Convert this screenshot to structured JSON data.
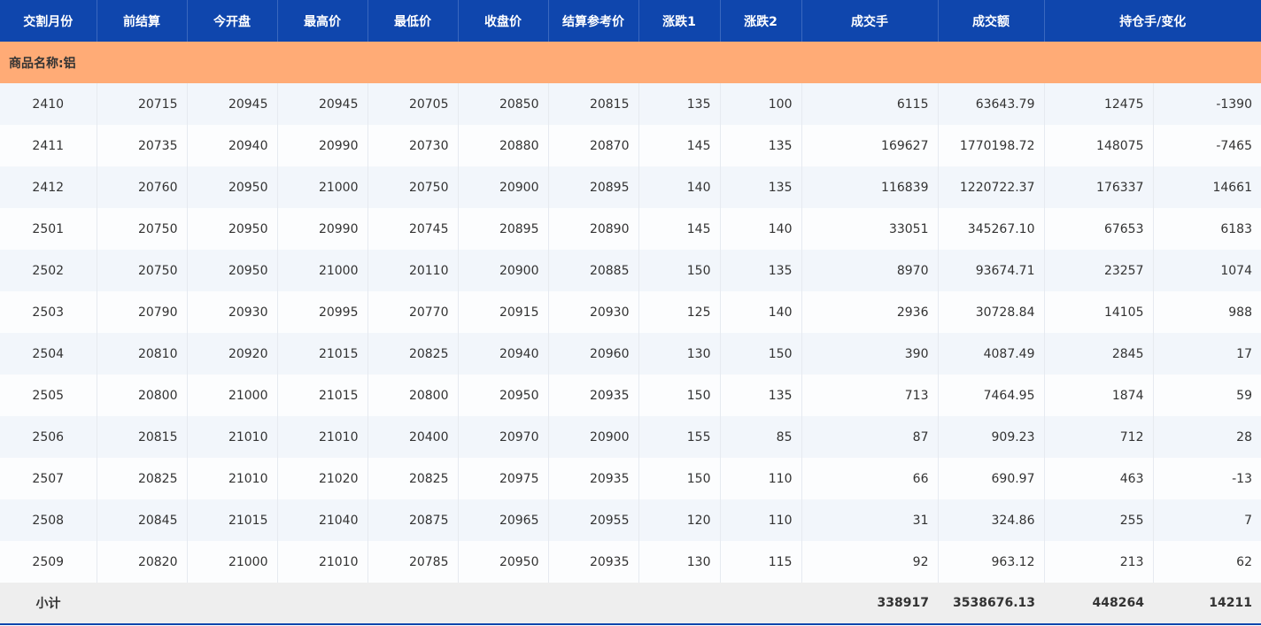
{
  "table": {
    "header": [
      "交割月份",
      "前结算",
      "今开盘",
      "最高价",
      "最低价",
      "收盘价",
      "结算参考价",
      "涨跌1",
      "涨跌2",
      "成交手",
      "成交额",
      "持仓手/变化"
    ],
    "group_label": "商品名称:铝",
    "rows": [
      [
        "2410",
        "20715",
        "20945",
        "20945",
        "20705",
        "20850",
        "20815",
        "135",
        "100",
        "6115",
        "63643.79",
        "12475",
        "-1390"
      ],
      [
        "2411",
        "20735",
        "20940",
        "20990",
        "20730",
        "20880",
        "20870",
        "145",
        "135",
        "169627",
        "1770198.72",
        "148075",
        "-7465"
      ],
      [
        "2412",
        "20760",
        "20950",
        "21000",
        "20750",
        "20900",
        "20895",
        "140",
        "135",
        "116839",
        "1220722.37",
        "176337",
        "14661"
      ],
      [
        "2501",
        "20750",
        "20950",
        "20990",
        "20745",
        "20895",
        "20890",
        "145",
        "140",
        "33051",
        "345267.10",
        "67653",
        "6183"
      ],
      [
        "2502",
        "20750",
        "20950",
        "21000",
        "20110",
        "20900",
        "20885",
        "150",
        "135",
        "8970",
        "93674.71",
        "23257",
        "1074"
      ],
      [
        "2503",
        "20790",
        "20930",
        "20995",
        "20770",
        "20915",
        "20930",
        "125",
        "140",
        "2936",
        "30728.84",
        "14105",
        "988"
      ],
      [
        "2504",
        "20810",
        "20920",
        "21015",
        "20825",
        "20940",
        "20960",
        "130",
        "150",
        "390",
        "4087.49",
        "2845",
        "17"
      ],
      [
        "2505",
        "20800",
        "21000",
        "21015",
        "20800",
        "20950",
        "20935",
        "150",
        "135",
        "713",
        "7464.95",
        "1874",
        "59"
      ],
      [
        "2506",
        "20815",
        "21010",
        "21010",
        "20400",
        "20970",
        "20900",
        "155",
        "85",
        "87",
        "909.23",
        "712",
        "28"
      ],
      [
        "2507",
        "20825",
        "21010",
        "21020",
        "20825",
        "20975",
        "20935",
        "150",
        "110",
        "66",
        "690.97",
        "463",
        "-13"
      ],
      [
        "2508",
        "20845",
        "21015",
        "21040",
        "20875",
        "20965",
        "20955",
        "120",
        "110",
        "31",
        "324.86",
        "255",
        "7"
      ],
      [
        "2509",
        "20820",
        "21000",
        "21010",
        "20785",
        "20950",
        "20935",
        "130",
        "115",
        "92",
        "963.12",
        "213",
        "62"
      ]
    ],
    "subtotal": [
      "小计",
      "338917",
      "3538676.13",
      "448264",
      "14211"
    ]
  }
}
